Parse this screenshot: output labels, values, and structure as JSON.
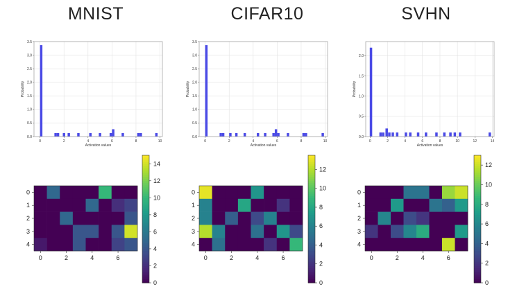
{
  "titles": [
    "MNIST",
    "CIFAR10",
    "SVHN"
  ],
  "chart_data": [
    {
      "type": "bar",
      "dataset": "MNIST",
      "xlabel": "Activation values",
      "ylabel": "Probability",
      "xlim": [
        -0.5,
        10.2
      ],
      "ylim": [
        0,
        3.5
      ],
      "xticks": [
        0,
        2,
        4,
        6,
        8,
        10
      ],
      "yticks": [
        0.0,
        0.5,
        1.0,
        1.5,
        2.0,
        2.5,
        3.0,
        3.5
      ],
      "ytick_labels": [
        "0.0",
        "0.5",
        "1.0",
        "1.5",
        "2.0",
        "2.5",
        "3.0",
        "3.5"
      ],
      "bar_width": 0.2,
      "x": [
        0.1,
        1.3,
        1.5,
        2.0,
        2.4,
        3.2,
        4.2,
        5.0,
        5.9,
        6.1,
        6.9,
        8.2,
        8.4,
        9.7
      ],
      "values": [
        3.37,
        0.13,
        0.13,
        0.13,
        0.13,
        0.13,
        0.13,
        0.13,
        0.13,
        0.27,
        0.13,
        0.13,
        0.13,
        0.13
      ],
      "grid": true
    },
    {
      "type": "bar",
      "dataset": "CIFAR10",
      "xlabel": "Activation values",
      "ylabel": "Probability",
      "xlim": [
        -0.5,
        10.2
      ],
      "ylim": [
        0,
        3.5
      ],
      "xticks": [
        0,
        2,
        4,
        6,
        8,
        10
      ],
      "yticks": [
        0.0,
        0.5,
        1.0,
        1.5,
        2.0,
        2.5,
        3.0,
        3.5
      ],
      "ytick_labels": [
        "0.0",
        "0.5",
        "1.0",
        "1.5",
        "2.0",
        "2.5",
        "3.0",
        "3.5"
      ],
      "bar_width": 0.2,
      "x": [
        0.1,
        1.3,
        1.5,
        2.1,
        2.6,
        3.3,
        4.4,
        5.0,
        5.7,
        5.9,
        6.1,
        6.9,
        8.2,
        8.4,
        9.8
      ],
      "values": [
        3.37,
        0.13,
        0.13,
        0.13,
        0.13,
        0.13,
        0.13,
        0.13,
        0.13,
        0.27,
        0.13,
        0.13,
        0.13,
        0.13,
        0.13
      ],
      "grid": true
    },
    {
      "type": "bar",
      "dataset": "SVHN",
      "xlabel": "Activation values",
      "ylabel": "Probability",
      "xlim": [
        -0.5,
        14.2
      ],
      "ylim": [
        0,
        2.35
      ],
      "xticks": [
        0,
        2,
        4,
        6,
        8,
        10,
        12,
        14
      ],
      "yticks": [
        0.0,
        0.5,
        1.0,
        1.5,
        2.0
      ],
      "ytick_labels": [
        "0.0",
        "0.5",
        "1.0",
        "1.5",
        "2.0"
      ],
      "bar_width": 0.28,
      "x": [
        0.1,
        1.2,
        1.5,
        1.9,
        2.2,
        2.6,
        3.1,
        4.1,
        4.6,
        5.5,
        6.4,
        7.6,
        8.5,
        9.2,
        9.7,
        10.3,
        13.7
      ],
      "values": [
        2.2,
        0.1,
        0.1,
        0.2,
        0.1,
        0.1,
        0.1,
        0.1,
        0.1,
        0.1,
        0.1,
        0.1,
        0.1,
        0.1,
        0.1,
        0.1,
        0.1
      ],
      "grid": true
    },
    {
      "type": "heatmap",
      "dataset": "MNIST",
      "colormap": "viridis",
      "rows": 5,
      "cols": 8,
      "xticks": [
        0,
        2,
        4,
        6
      ],
      "yticks": [
        0,
        1,
        2,
        3,
        4
      ],
      "colorbar_ticks": [
        0,
        2,
        4,
        6,
        8,
        10,
        12,
        14
      ],
      "vmin": 0,
      "vmax": 15,
      "values": [
        [
          0,
          5,
          0,
          0,
          0,
          10,
          0,
          0
        ],
        [
          0,
          0,
          0,
          0,
          5,
          0,
          2,
          3
        ],
        [
          0,
          0,
          5,
          0,
          0,
          0,
          0,
          4
        ],
        [
          0,
          0,
          0,
          4,
          4,
          0,
          4,
          14
        ],
        [
          1,
          0,
          0,
          4,
          0,
          0,
          3,
          4
        ]
      ]
    },
    {
      "type": "heatmap",
      "dataset": "CIFAR10",
      "colormap": "viridis",
      "rows": 5,
      "cols": 8,
      "xticks": [
        0,
        2,
        4,
        6
      ],
      "yticks": [
        0,
        1,
        2,
        3,
        4
      ],
      "colorbar_ticks": [
        0,
        2,
        4,
        6,
        8,
        10,
        12
      ],
      "vmin": 0,
      "vmax": 13.5,
      "values": [
        [
          13,
          0,
          0,
          0,
          7,
          0,
          0,
          0
        ],
        [
          6,
          0,
          0,
          8,
          0,
          0,
          2,
          0
        ],
        [
          6,
          0,
          4,
          0,
          3,
          6,
          0,
          0
        ],
        [
          12,
          6,
          0,
          0,
          5,
          0,
          7,
          3
        ],
        [
          0,
          5,
          0,
          0,
          0,
          2,
          0,
          9
        ]
      ]
    },
    {
      "type": "heatmap",
      "dataset": "SVHN",
      "colormap": "viridis",
      "rows": 5,
      "cols": 8,
      "xticks": [
        0,
        2,
        4,
        6
      ],
      "yticks": [
        0,
        1,
        2,
        3,
        4
      ],
      "colorbar_ticks": [
        0,
        2,
        4,
        6,
        8,
        10,
        12
      ],
      "vmin": 0,
      "vmax": 13,
      "values": [
        [
          0,
          0,
          0,
          5,
          5,
          0,
          11,
          12
        ],
        [
          0,
          0,
          7,
          0,
          0,
          5,
          4,
          7
        ],
        [
          0,
          6,
          0,
          3,
          2,
          0,
          0,
          0
        ],
        [
          2,
          0,
          3,
          6,
          8,
          0,
          0,
          7
        ],
        [
          0,
          0,
          0,
          0,
          0,
          0,
          12,
          0
        ]
      ]
    }
  ]
}
